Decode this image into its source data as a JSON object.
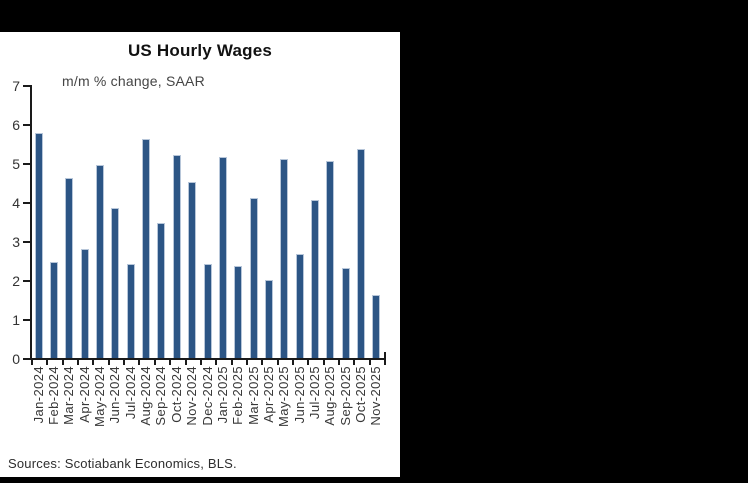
{
  "footer": {
    "sources": "Sources: Scotiabank Economics, BLS."
  },
  "colors": {
    "backdrop": "#000000",
    "panel": "#ffffff",
    "bar": "#2c5585",
    "axis": "#1a1a1a"
  },
  "chart_data": {
    "type": "bar",
    "title": "US Hourly Wages",
    "subtitle": "m/m % change, SAAR",
    "categories": [
      "Jan-2024",
      "Feb-2024",
      "Mar-2024",
      "Apr-2024",
      "May-2024",
      "Jun-2024",
      "Jul-2024",
      "Aug-2024",
      "Sep-2024",
      "Oct-2024",
      "Nov-2024",
      "Dec-2024",
      "Jan-2025",
      "Feb-2025",
      "Mar-2025",
      "Apr-2025",
      "May-2025",
      "Jun-2025",
      "Jul-2025",
      "Aug-2025",
      "Sep-2025",
      "Oct-2025",
      "Nov-2025"
    ],
    "values": [
      5.75,
      2.45,
      4.6,
      2.8,
      4.95,
      3.85,
      2.4,
      5.6,
      3.45,
      5.2,
      4.5,
      2.4,
      5.15,
      2.35,
      4.1,
      2.0,
      5.1,
      2.65,
      4.05,
      5.05,
      2.3,
      5.35,
      1.6
    ],
    "ylim": [
      0,
      7
    ],
    "yticks": [
      0,
      1,
      2,
      3,
      4,
      5,
      6,
      7
    ],
    "bar_color": "#2c5585",
    "grid": false,
    "legend": null,
    "xlabel": "",
    "ylabel": ""
  }
}
